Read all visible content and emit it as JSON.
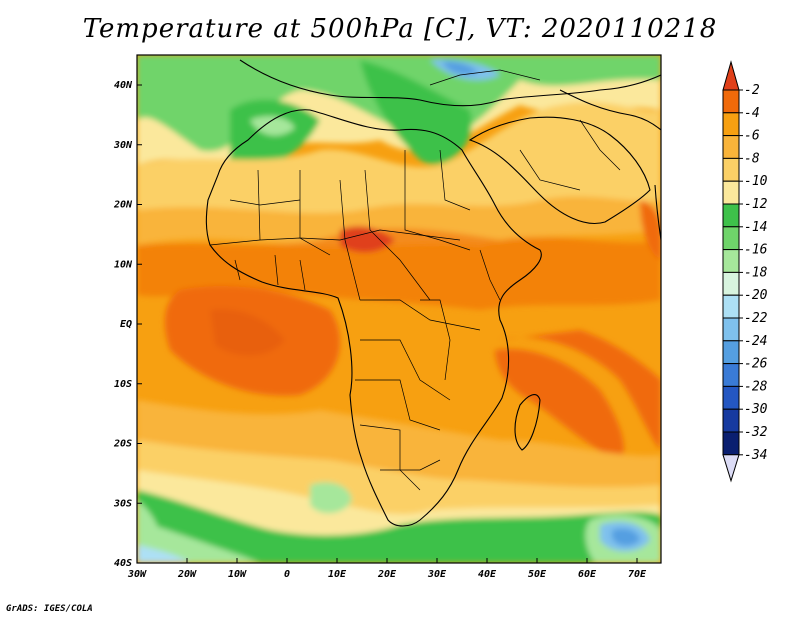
{
  "title": "Temperature at 500hPa [C], VT: 2020110218",
  "credit": "GrADS: IGES/COLA",
  "map": {
    "lon_range": [
      -30,
      75
    ],
    "lat_range": [
      -40,
      45
    ],
    "lon_ticks": [
      "30W",
      "20W",
      "10W",
      "0",
      "10E",
      "20E",
      "30E",
      "40E",
      "50E",
      "60E",
      "70E"
    ],
    "lat_ticks": [
      "40N",
      "30N",
      "20N",
      "10N",
      "EQ",
      "10S",
      "20S",
      "30S",
      "40S"
    ]
  },
  "colorbar": {
    "labels": [
      "-2",
      "-4",
      "-6",
      "-8",
      "-10",
      "-12",
      "-14",
      "-16",
      "-18",
      "-20",
      "-22",
      "-24",
      "-26",
      "-28",
      "-30",
      "-32",
      "-34"
    ],
    "colors": [
      "#e0401a",
      "#f06a0a",
      "#f7a011",
      "#f9b43a",
      "#fbd066",
      "#fbe89c",
      "#3ec14a",
      "#6fd46a",
      "#a6e79b",
      "#d8f4df",
      "#ade0f5",
      "#7fc1ed",
      "#559fe1",
      "#3a7bd6",
      "#2457c2",
      "#163aa0",
      "#0a1f70",
      "#dcdcf6"
    ]
  }
}
